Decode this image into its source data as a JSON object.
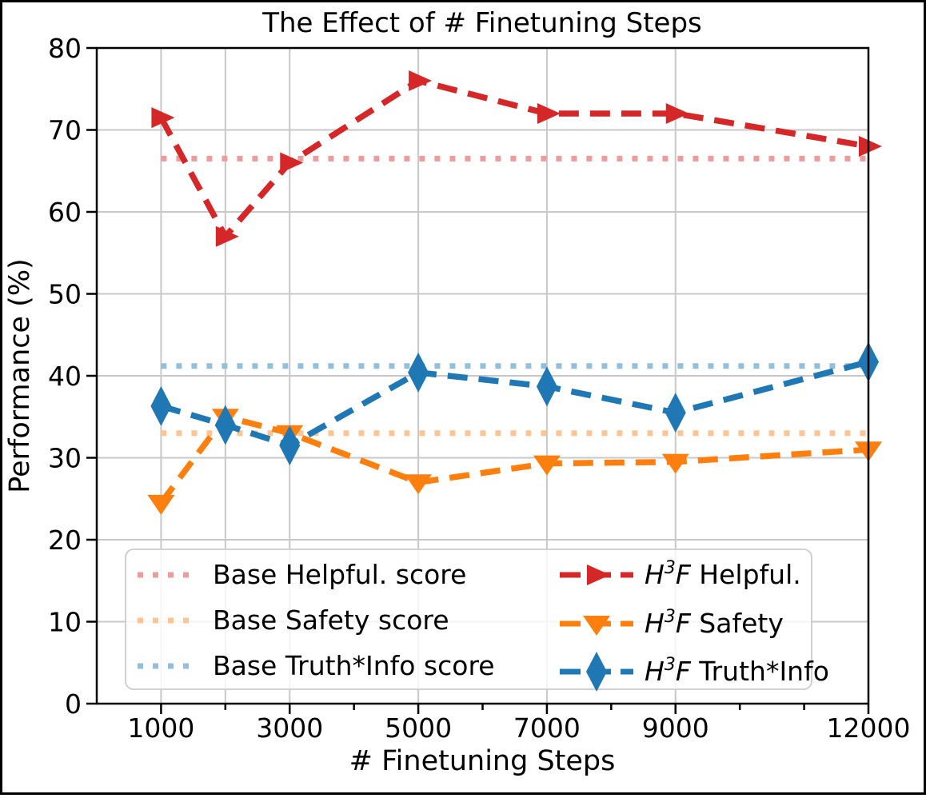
{
  "chart_data": {
    "type": "line",
    "title": "The Effect of # Finetuning Steps",
    "xlabel": "# Finetuning Steps",
    "ylabel": "Performance (%)",
    "xlim": [
      0,
      12000
    ],
    "ylim": [
      0,
      80
    ],
    "x": [
      1000,
      2000,
      3000,
      5000,
      7000,
      9000,
      12000
    ],
    "xticks_labeled": [
      {
        "value": 1000,
        "label": "1000"
      },
      {
        "value": 3000,
        "label": "3000"
      },
      {
        "value": 5000,
        "label": "5000"
      },
      {
        "value": 7000,
        "label": "7000"
      },
      {
        "value": 9000,
        "label": "9000"
      },
      {
        "value": 12000,
        "label": "12000"
      }
    ],
    "xticks_minor": [
      2000,
      4000,
      6000,
      8000,
      10000,
      11000
    ],
    "yticks": [
      0,
      10,
      20,
      30,
      40,
      50,
      60,
      70,
      80
    ],
    "grid": {
      "vertical_at": [
        1000,
        2000,
        3000,
        5000,
        7000,
        9000,
        12000
      ],
      "horizontal_at": [
        10,
        20,
        30,
        40,
        50,
        60,
        70
      ],
      "color": "#c8c8c8"
    },
    "series": [
      {
        "name": "H3F Helpful.",
        "legend_label": {
          "prefix": "H",
          "sup": "3",
          "mid": "F",
          "rest": " Helpful."
        },
        "marker": "triangle-right",
        "color": "#d62728",
        "values": [
          71.5,
          57,
          66,
          76,
          72,
          72,
          68
        ]
      },
      {
        "name": "H3F Safety",
        "legend_label": {
          "prefix": "H",
          "sup": "3",
          "mid": "F",
          "rest": " Safety"
        },
        "marker": "triangle-down",
        "color": "#ff7f0e",
        "values": [
          24.5,
          35,
          33,
          27,
          29.3,
          29.5,
          31
        ]
      },
      {
        "name": "H3F Truth*Info",
        "legend_label": {
          "prefix": "H",
          "sup": "3",
          "mid": "F",
          "rest": " Truth*Info"
        },
        "marker": "diamond",
        "color": "#1f77b4",
        "values": [
          36.3,
          34,
          31.5,
          40.4,
          38.7,
          35.5,
          41.7
        ]
      }
    ],
    "baselines": [
      {
        "name": "Base Helpful. score",
        "color": "#ec9c9d",
        "value": 66.5
      },
      {
        "name": "Base Safety score",
        "color": "#ffc493",
        "value": 33
      },
      {
        "name": "Base Truth*Info score",
        "color": "#94bfda",
        "value": 41.2
      }
    ],
    "legend_position": "lower left"
  }
}
